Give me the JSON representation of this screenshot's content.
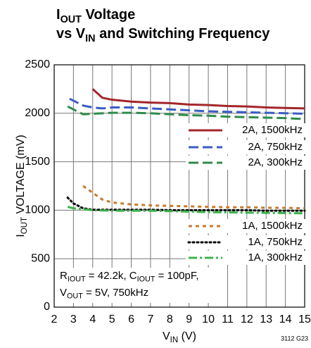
{
  "chart_data": {
    "type": "line",
    "title": [
      [
        "I",
        "OUT",
        " Voltage"
      ],
      [
        "vs V",
        "IN",
        " and Switching Frequency"
      ]
    ],
    "ylabel": [
      "I",
      "OUT",
      " VOLTAGE (mV)"
    ],
    "xlabel": [
      "V",
      "IN",
      " (V)"
    ],
    "annotation": [
      [
        "R",
        "IOUT",
        " = 42.2k, C",
        "IOUT",
        " = 100pF,"
      ],
      [
        "V",
        "OUT",
        " = 5V, 750kHz"
      ]
    ],
    "footnote": "3112 G23",
    "xlim": [
      2,
      15
    ],
    "xticks": [
      2,
      3,
      4,
      5,
      6,
      7,
      8,
      9,
      10,
      11,
      12,
      13,
      14,
      15
    ],
    "ylim": [
      0,
      2500
    ],
    "yticks": [
      0,
      500,
      1000,
      1500,
      2000,
      2500
    ],
    "grid": true,
    "legend": "right",
    "series": [
      {
        "name": "2A, 1500kHz",
        "color": "#a3262b",
        "style": "solid",
        "x": [
          4,
          4.5,
          5,
          6,
          7,
          8,
          9,
          10,
          11,
          12,
          13,
          14,
          15
        ],
        "values": [
          2250,
          2160,
          2140,
          2120,
          2110,
          2105,
          2090,
          2085,
          2075,
          2070,
          2060,
          2055,
          2050
        ]
      },
      {
        "name": "2A, 750kHz",
        "color": "#3a5cc4",
        "style": "dashed",
        "x": [
          2.8,
          3.5,
          4,
          4.5,
          5,
          6,
          7,
          8,
          9,
          10,
          11,
          12,
          13,
          14,
          15
        ],
        "values": [
          2150,
          2080,
          2060,
          2050,
          2060,
          2060,
          2050,
          2040,
          2030,
          2020,
          2015,
          2010,
          2005,
          2000,
          1995
        ]
      },
      {
        "name": "2A, 300kHz",
        "color": "#2e8b4a",
        "style": "dashed",
        "x": [
          2.7,
          3.5,
          4,
          5,
          6,
          7,
          8,
          9,
          10,
          11,
          12,
          13,
          14,
          15
        ],
        "values": [
          2070,
          1990,
          1995,
          2005,
          2005,
          2000,
          1990,
          1980,
          1975,
          1965,
          1960,
          1955,
          1950,
          1940
        ]
      },
      {
        "name": "1A, 1500kHz",
        "color": "#c77b30",
        "style": "dotted",
        "x": [
          3.5,
          4,
          4.5,
          5,
          6,
          7,
          8,
          9,
          10,
          11,
          12,
          13,
          14,
          15
        ],
        "values": [
          1250,
          1180,
          1110,
          1080,
          1060,
          1050,
          1045,
          1040,
          1035,
          1030,
          1030,
          1025,
          1025,
          1020
        ]
      },
      {
        "name": "1A, 750kHz",
        "color": "#000000",
        "style": "dots",
        "x": [
          2.7,
          3,
          3.5,
          4,
          5,
          6,
          7,
          8,
          9,
          10,
          11,
          12,
          13,
          14,
          15
        ],
        "values": [
          1130,
          1070,
          1020,
          1005,
          1005,
          1005,
          1005,
          1000,
          1000,
          1000,
          1000,
          1000,
          995,
          995,
          995
        ]
      },
      {
        "name": "1A, 300kHz",
        "color": "#3cb44b",
        "style": "dashdot",
        "x": [
          2.7,
          3,
          3.5,
          4,
          5,
          6,
          7,
          8,
          9,
          10,
          11,
          12,
          13,
          14,
          15
        ],
        "values": [
          1035,
          1020,
          1010,
          1000,
          995,
          995,
          995,
          990,
          985,
          980,
          978,
          975,
          972,
          970,
          968
        ]
      }
    ]
  }
}
